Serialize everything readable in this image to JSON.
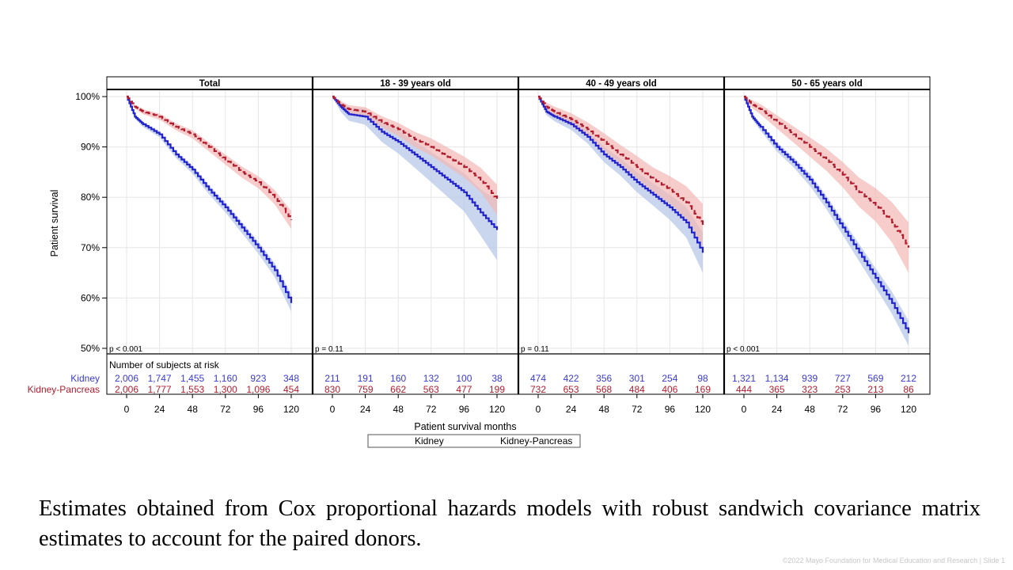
{
  "chart_data": {
    "type": "line",
    "title": "",
    "xlabel": "Patient survival months",
    "ylabel": "Patient survival",
    "ylim": [
      50,
      100
    ],
    "xlim": [
      0,
      120
    ],
    "x_ticks": [
      0,
      24,
      48,
      72,
      96,
      120
    ],
    "y_ticks": [
      "50%",
      "60%",
      "70%",
      "80%",
      "90%",
      "100%"
    ],
    "y_tick_values": [
      50,
      60,
      70,
      80,
      90,
      100
    ],
    "grid": true,
    "legend": {
      "placement": "bottom-center",
      "entries": [
        "Kidney",
        "Kidney-Pancreas"
      ]
    },
    "colors": {
      "Kidney": "#2222cc",
      "Kidney-Pancreas": "#b01c2e",
      "Kidney_band": "#b8c8e8",
      "Kidney-Pancreas_band": "#f2b8b4"
    },
    "risk_table_title": "Number of subjects at risk",
    "risk_row_labels": [
      "Kidney",
      "Kidney-Pancreas"
    ],
    "panels": [
      {
        "title": "Total",
        "p_value": "p < 0.001",
        "x": [
          0,
          6,
          12,
          24,
          36,
          48,
          60,
          72,
          84,
          96,
          108,
          120
        ],
        "series": [
          {
            "name": "Kidney",
            "values": [
              100,
              96,
              94.5,
              92.5,
              88.5,
              85.5,
              81.5,
              78,
              74,
              70,
              65.5,
              59
            ],
            "ci_halfwidth": [
              0,
              0.4,
              0.5,
              0.6,
              0.7,
              0.8,
              0.9,
              1.0,
              1.1,
              1.2,
              1.4,
              1.7
            ]
          },
          {
            "name": "Kidney-Pancreas",
            "values": [
              100,
              98,
              97,
              96,
              94,
              92.5,
              90,
              87.5,
              85,
              83,
              80,
              75.5
            ],
            "ci_halfwidth": [
              0,
              0.4,
              0.5,
              0.6,
              0.7,
              0.8,
              0.9,
              1.0,
              1.1,
              1.2,
              1.4,
              1.8
            ]
          }
        ],
        "at_risk": {
          "Kidney": [
            "2,006",
            "1,747",
            "1,455",
            "1,160",
            "923",
            "348"
          ],
          "Kidney-Pancreas": [
            "2,006",
            "1,777",
            "1,553",
            "1,300",
            "1,096",
            "454"
          ]
        }
      },
      {
        "title": "18 - 39 years old",
        "p_value": "p  = 0.11",
        "x": [
          0,
          6,
          12,
          24,
          36,
          48,
          60,
          72,
          84,
          96,
          108,
          120
        ],
        "series": [
          {
            "name": "Kidney",
            "values": [
              100,
              98,
              96.5,
              96,
              93,
              91,
              88.5,
              86,
              83.5,
              81,
              77,
              73.5
            ],
            "ci_halfwidth": [
              0,
              1.0,
              1.3,
              1.6,
              2.0,
              2.3,
              2.6,
              3.0,
              3.4,
              3.8,
              4.6,
              6.0
            ]
          },
          {
            "name": "Kidney-Pancreas",
            "values": [
              100,
              98.5,
              97.5,
              97,
              95,
              93.5,
              91.5,
              90,
              88,
              86,
              83.5,
              79.5
            ],
            "ci_halfwidth": [
              0,
              0.6,
              0.8,
              0.9,
              1.1,
              1.3,
              1.5,
              1.7,
              1.9,
              2.1,
              2.4,
              3.0
            ]
          }
        ],
        "at_risk": {
          "Kidney": [
            "211",
            "191",
            "160",
            "132",
            "100",
            "38"
          ],
          "Kidney-Pancreas": [
            "830",
            "759",
            "662",
            "563",
            "477",
            "199"
          ]
        }
      },
      {
        "title": "40 - 49 years old",
        "p_value": "p  = 0.11",
        "x": [
          0,
          6,
          12,
          24,
          36,
          48,
          60,
          72,
          84,
          96,
          108,
          120
        ],
        "series": [
          {
            "name": "Kidney",
            "values": [
              100,
              97,
              96,
              94.5,
              92,
              88.5,
              86,
              83,
              80.5,
              78,
              75,
              69
            ],
            "ci_halfwidth": [
              0,
              0.7,
              0.9,
              1.1,
              1.3,
              1.5,
              1.7,
              2.0,
              2.2,
              2.5,
              3.0,
              4.0
            ]
          },
          {
            "name": "Kidney-Pancreas",
            "values": [
              100,
              98,
              97,
              95.5,
              93.5,
              91,
              88.5,
              86,
              83.5,
              81.5,
              79,
              74.5
            ],
            "ci_halfwidth": [
              0,
              0.8,
              1.0,
              1.2,
              1.4,
              1.7,
              1.9,
              2.2,
              2.4,
              2.7,
              3.2,
              4.2
            ]
          }
        ],
        "at_risk": {
          "Kidney": [
            "474",
            "422",
            "356",
            "301",
            "254",
            "98"
          ],
          "Kidney-Pancreas": [
            "732",
            "653",
            "568",
            "484",
            "406",
            "169"
          ]
        }
      },
      {
        "title": "50 - 65 years old",
        "p_value": "p < 0.001",
        "x": [
          0,
          6,
          12,
          24,
          36,
          48,
          60,
          72,
          84,
          96,
          108,
          120
        ],
        "series": [
          {
            "name": "Kidney",
            "values": [
              100,
              96,
              94,
              90,
              87,
              83.5,
              79,
              74,
              69,
              64,
              59,
              53
            ],
            "ci_halfwidth": [
              0,
              0.5,
              0.7,
              0.9,
              1.0,
              1.2,
              1.3,
              1.5,
              1.7,
              1.9,
              2.2,
              2.5
            ]
          },
          {
            "name": "Kidney-Pancreas",
            "values": [
              100,
              98.5,
              97.5,
              95,
              92.5,
              90,
              87.5,
              84.5,
              81,
              78.5,
              75,
              70
            ],
            "ci_halfwidth": [
              0,
              0.8,
              1.0,
              1.3,
              1.6,
              1.9,
              2.2,
              2.5,
              2.9,
              3.3,
              4.0,
              5.0
            ]
          }
        ],
        "at_risk": {
          "Kidney": [
            "1,321",
            "1,134",
            "939",
            "727",
            "569",
            "212"
          ],
          "Kidney-Pancreas": [
            "444",
            "365",
            "323",
            "253",
            "213",
            "86"
          ]
        }
      }
    ]
  },
  "caption": "Estimates obtained from Cox proportional hazards models with robust sandwich covariance matrix estimates to account for the paired donors.",
  "footer": "©2022 Mayo Foundation for Medical Education and Research  |  Slide 1"
}
